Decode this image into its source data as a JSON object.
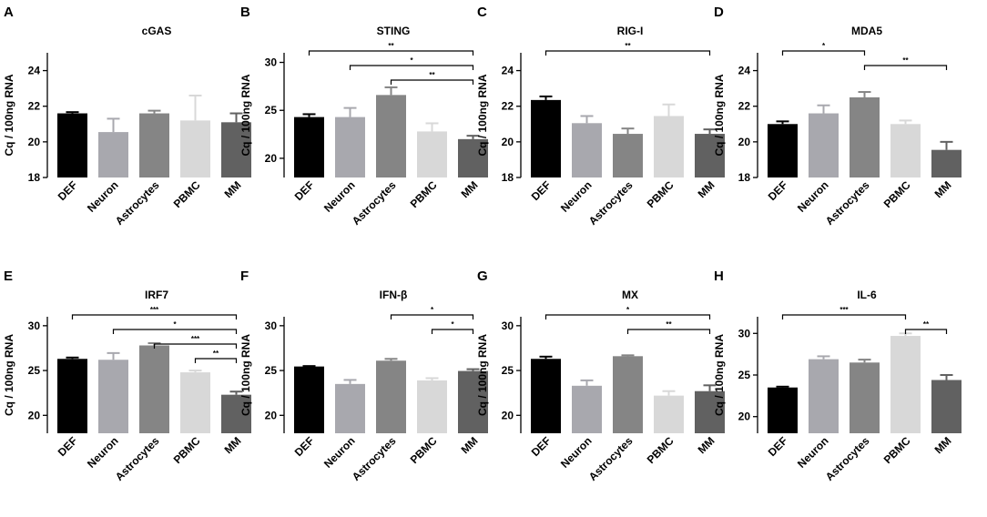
{
  "figure": {
    "colors": {
      "DEF": "#000000",
      "Neuron": "#a8a8ae",
      "Astrocytes": "#858585",
      "PBMC": "#d8d8d8",
      "MM": "#616161"
    }
  },
  "chart_data": [
    {
      "type": "bar",
      "panel": "A",
      "title": "cGAS",
      "ylabel": "Cq / 100ng RNA",
      "categories": [
        "DEF",
        "Neuron",
        "Astrocytes",
        "PBMC",
        "MM"
      ],
      "values": [
        21.6,
        20.55,
        21.6,
        21.2,
        21.1
      ],
      "errors": [
        0.07,
        0.75,
        0.15,
        1.4,
        0.5
      ],
      "ylim": [
        18,
        25
      ],
      "yticks": [
        18,
        20,
        22,
        24
      ],
      "significance": []
    },
    {
      "type": "bar",
      "panel": "B",
      "title": "STING",
      "ylabel": "Cq / 100ng RNA",
      "categories": [
        "DEF",
        "Neuron",
        "Astrocytes",
        "PBMC",
        "MM"
      ],
      "values": [
        24.3,
        24.3,
        26.6,
        22.8,
        22.0
      ],
      "errors": [
        0.3,
        0.95,
        0.8,
        0.85,
        0.35
      ],
      "ylim": [
        18,
        31
      ],
      "yticks": [
        20,
        25,
        30
      ],
      "significance": [
        {
          "from": 0,
          "to": 4,
          "label": "**"
        },
        {
          "from": 1,
          "to": 4,
          "label": "*"
        },
        {
          "from": 2,
          "to": 4,
          "label": "**"
        }
      ]
    },
    {
      "type": "bar",
      "panel": "C",
      "title": "RIG-I",
      "ylabel": "Cq / 100ng RNA",
      "categories": [
        "DEF",
        "Neuron",
        "Astrocytes",
        "PBMC",
        "MM"
      ],
      "values": [
        22.35,
        21.05,
        20.45,
        21.45,
        20.45
      ],
      "errors": [
        0.2,
        0.4,
        0.3,
        0.65,
        0.25
      ],
      "ylim": [
        18,
        25
      ],
      "yticks": [
        18,
        20,
        22,
        24
      ],
      "significance": [
        {
          "from": 0,
          "to": 4,
          "label": "**"
        }
      ]
    },
    {
      "type": "bar",
      "panel": "D",
      "title": "MDA5",
      "ylabel": "Cq / 100ng RNA",
      "categories": [
        "DEF",
        "Neuron",
        "Astrocytes",
        "PBMC",
        "MM"
      ],
      "values": [
        21.0,
        21.6,
        22.5,
        21.0,
        19.55
      ],
      "errors": [
        0.15,
        0.45,
        0.3,
        0.2,
        0.45
      ],
      "ylim": [
        18,
        25
      ],
      "yticks": [
        18,
        20,
        22,
        24
      ],
      "significance": [
        {
          "from": 0,
          "to": 2,
          "label": "*"
        },
        {
          "from": 2,
          "to": 4,
          "label": "**"
        }
      ]
    },
    {
      "type": "bar",
      "panel": "E",
      "title": "IRF7",
      "ylabel": "Cq / 100ng RNA",
      "categories": [
        "DEF",
        "Neuron",
        "Astrocytes",
        "PBMC",
        "MM"
      ],
      "values": [
        26.3,
        26.2,
        27.8,
        24.8,
        22.3
      ],
      "errors": [
        0.15,
        0.75,
        0.25,
        0.2,
        0.35
      ],
      "ylim": [
        18,
        31
      ],
      "yticks": [
        20,
        25,
        30
      ],
      "significance": [
        {
          "from": 0,
          "to": 4,
          "label": "***"
        },
        {
          "from": 1,
          "to": 4,
          "label": "*"
        },
        {
          "from": 2,
          "to": 4,
          "label": "***"
        },
        {
          "from": 3,
          "to": 4,
          "label": "**"
        }
      ]
    },
    {
      "type": "bar",
      "panel": "F",
      "title": "IFN-β",
      "ylabel": "Cq / 100ng RNA",
      "categories": [
        "DEF",
        "Neuron",
        "Astrocytes",
        "PBMC",
        "MM"
      ],
      "values": [
        25.45,
        23.5,
        26.1,
        23.9,
        24.95
      ],
      "errors": [
        0.05,
        0.45,
        0.2,
        0.25,
        0.2
      ],
      "ylim": [
        18,
        31
      ],
      "yticks": [
        20,
        25,
        30
      ],
      "significance": [
        {
          "from": 2,
          "to": 4,
          "label": "*"
        },
        {
          "from": 3,
          "to": 4,
          "label": "*"
        }
      ]
    },
    {
      "type": "bar",
      "panel": "G",
      "title": "MX",
      "ylabel": "Cq / 100ng RNA",
      "categories": [
        "DEF",
        "Neuron",
        "Astrocytes",
        "PBMC",
        "MM"
      ],
      "values": [
        26.3,
        23.3,
        26.6,
        22.2,
        22.7
      ],
      "errors": [
        0.25,
        0.6,
        0.1,
        0.5,
        0.65
      ],
      "ylim": [
        18,
        31
      ],
      "yticks": [
        20,
        25,
        30
      ],
      "significance": [
        {
          "from": 0,
          "to": 4,
          "label": "*"
        },
        {
          "from": 2,
          "to": 4,
          "label": "**"
        }
      ]
    },
    {
      "type": "bar",
      "panel": "H",
      "title": "IL-6",
      "ylabel": "Cq / 100ng RNA",
      "categories": [
        "DEF",
        "Neuron",
        "Astrocytes",
        "PBMC",
        "MM"
      ],
      "values": [
        23.5,
        26.9,
        26.5,
        29.7,
        24.4
      ],
      "errors": [
        0.1,
        0.35,
        0.35,
        0.3,
        0.6
      ],
      "ylim": [
        18,
        32
      ],
      "yticks": [
        20,
        25,
        30
      ],
      "significance": [
        {
          "from": 0,
          "to": 3,
          "label": "***"
        },
        {
          "from": 3,
          "to": 4,
          "label": "**"
        }
      ]
    }
  ]
}
